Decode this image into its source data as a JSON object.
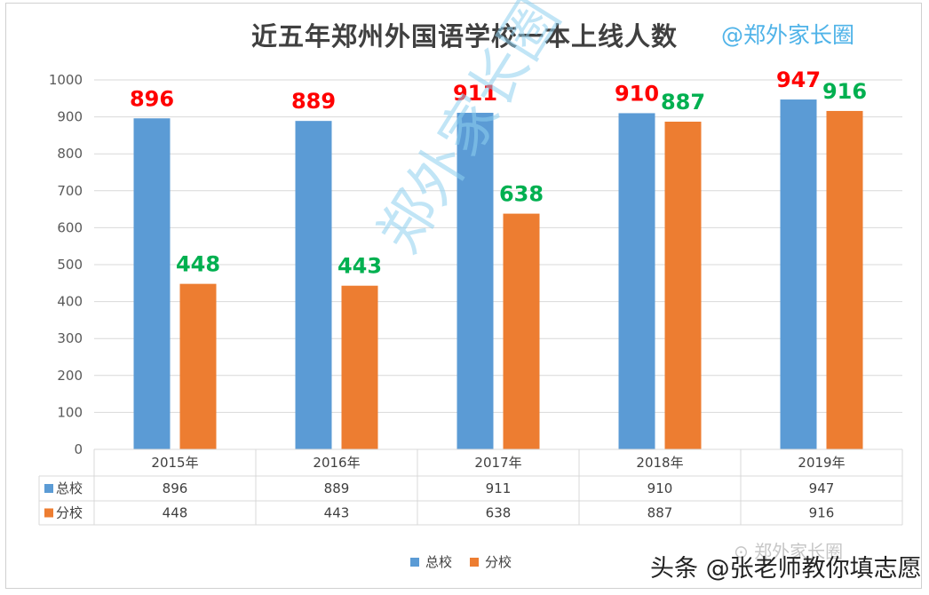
{
  "title": "近五年郑州外国语学校一本上线人数",
  "handle": "@郑外家长圈",
  "watermark": "郑外家长圈",
  "wechat_mark": "郑外家长圈",
  "footer": "头条 @张老师教你填志愿",
  "colors": {
    "总校": "#5b9bd5",
    "分校": "#ed7d31",
    "label_总校": "#ff0000",
    "label_分校": "#00b050"
  },
  "legend": [
    {
      "name": "总校",
      "color": "#5b9bd5"
    },
    {
      "name": "分校",
      "color": "#ed7d31"
    }
  ],
  "chart_data": {
    "type": "bar",
    "title": "近五年郑州外国语学校一本上线人数",
    "categories": [
      "2015年",
      "2016年",
      "2017年",
      "2018年",
      "2019年"
    ],
    "series": [
      {
        "name": "总校",
        "values": [
          896,
          889,
          911,
          910,
          947
        ]
      },
      {
        "name": "分校",
        "values": [
          448,
          443,
          638,
          887,
          916
        ]
      }
    ],
    "ylim": [
      0,
      1000
    ],
    "yticks": [
      0,
      100,
      200,
      300,
      400,
      500,
      600,
      700,
      800,
      900,
      1000
    ],
    "grid": true,
    "data_table": true,
    "legend_position": "bottom"
  }
}
